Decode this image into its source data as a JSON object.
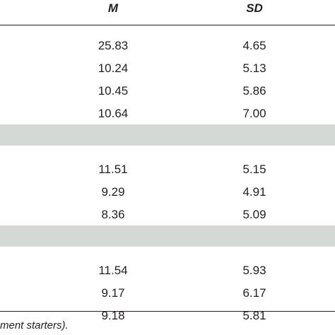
{
  "table": {
    "header": [
      "M",
      "SD"
    ],
    "sections": [
      {
        "rows": [
          [
            "25.83",
            "4.65"
          ],
          [
            "10.24",
            "5.13"
          ],
          [
            "10.45",
            "5.86"
          ],
          [
            "10.64",
            "7.00"
          ]
        ]
      },
      {
        "rows": [
          [
            "11.51",
            "5.15"
          ],
          [
            "9.29",
            "4.91"
          ],
          [
            "8.36",
            "5.09"
          ]
        ]
      },
      {
        "rows": [
          [
            "11.54",
            "5.93"
          ],
          [
            "9.17",
            "6.17"
          ],
          [
            "9.18",
            "5.81"
          ]
        ]
      }
    ]
  },
  "footnote": "ment starters)."
}
